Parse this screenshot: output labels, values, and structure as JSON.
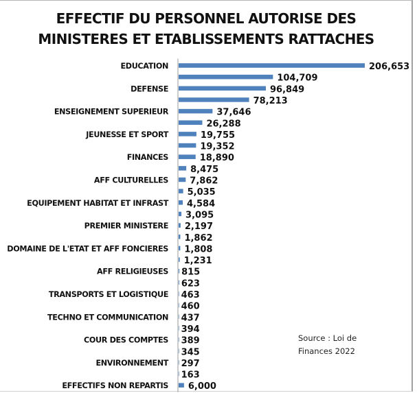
{
  "chart_data": {
    "type": "bar",
    "orientation": "horizontal",
    "title_lines": [
      "EFFECTIF DU PERSONNEL AUTORISE DES",
      "MINISTERES ET ETABLISSEMENTS RATTACHES"
    ],
    "xlabel": "",
    "ylabel": "",
    "grid": false,
    "legend": null,
    "bar_color": "#4f81bd",
    "annotation": [
      "Source : Loi de",
      "Finances 2022"
    ],
    "categories": [
      "EDUCATION",
      "",
      "DEFENSE",
      "",
      "ENSEIGNEMENT SUPERIEUR",
      "",
      "JEUNESSE ET SPORT",
      "",
      "FINANCES",
      "",
      "AFF CULTURELLES",
      "",
      "EQUIPEMENT HABITAT ET INFRAST",
      "",
      "PREMIER MINISTERE",
      "",
      "DOMAINE DE L'ETAT ET AFF FONCIERES",
      "",
      "AFF RELIGIEUSES",
      "",
      "TRANSPORTS ET LOGISTIQUE",
      "",
      "TECHNO ET COMMUNICATION",
      "",
      "COUR DES COMPTES",
      "",
      "ENVIRONNEMENT",
      "",
      "EFFECTIFS NON REPARTIS"
    ],
    "values": [
      206653,
      104709,
      96849,
      78213,
      37646,
      26288,
      19755,
      19352,
      18890,
      8475,
      7862,
      5035,
      4584,
      3095,
      2197,
      1862,
      1808,
      1231,
      815,
      623,
      463,
      460,
      437,
      394,
      389,
      345,
      297,
      163,
      6000
    ],
    "value_labels": [
      "206,653",
      "104,709",
      "96,849",
      "78,213",
      "37,646",
      "26,288",
      "19,755",
      "19,352",
      "18,890",
      "8,475",
      "7,862",
      "5,035",
      "4,584",
      "3,095",
      "2,197",
      "1,862",
      "1,808",
      "1,231",
      "815",
      "623",
      "463",
      "460",
      "437",
      "394",
      "389",
      "345",
      "297",
      "163",
      "6,000"
    ],
    "xlim": [
      0,
      206653
    ]
  }
}
